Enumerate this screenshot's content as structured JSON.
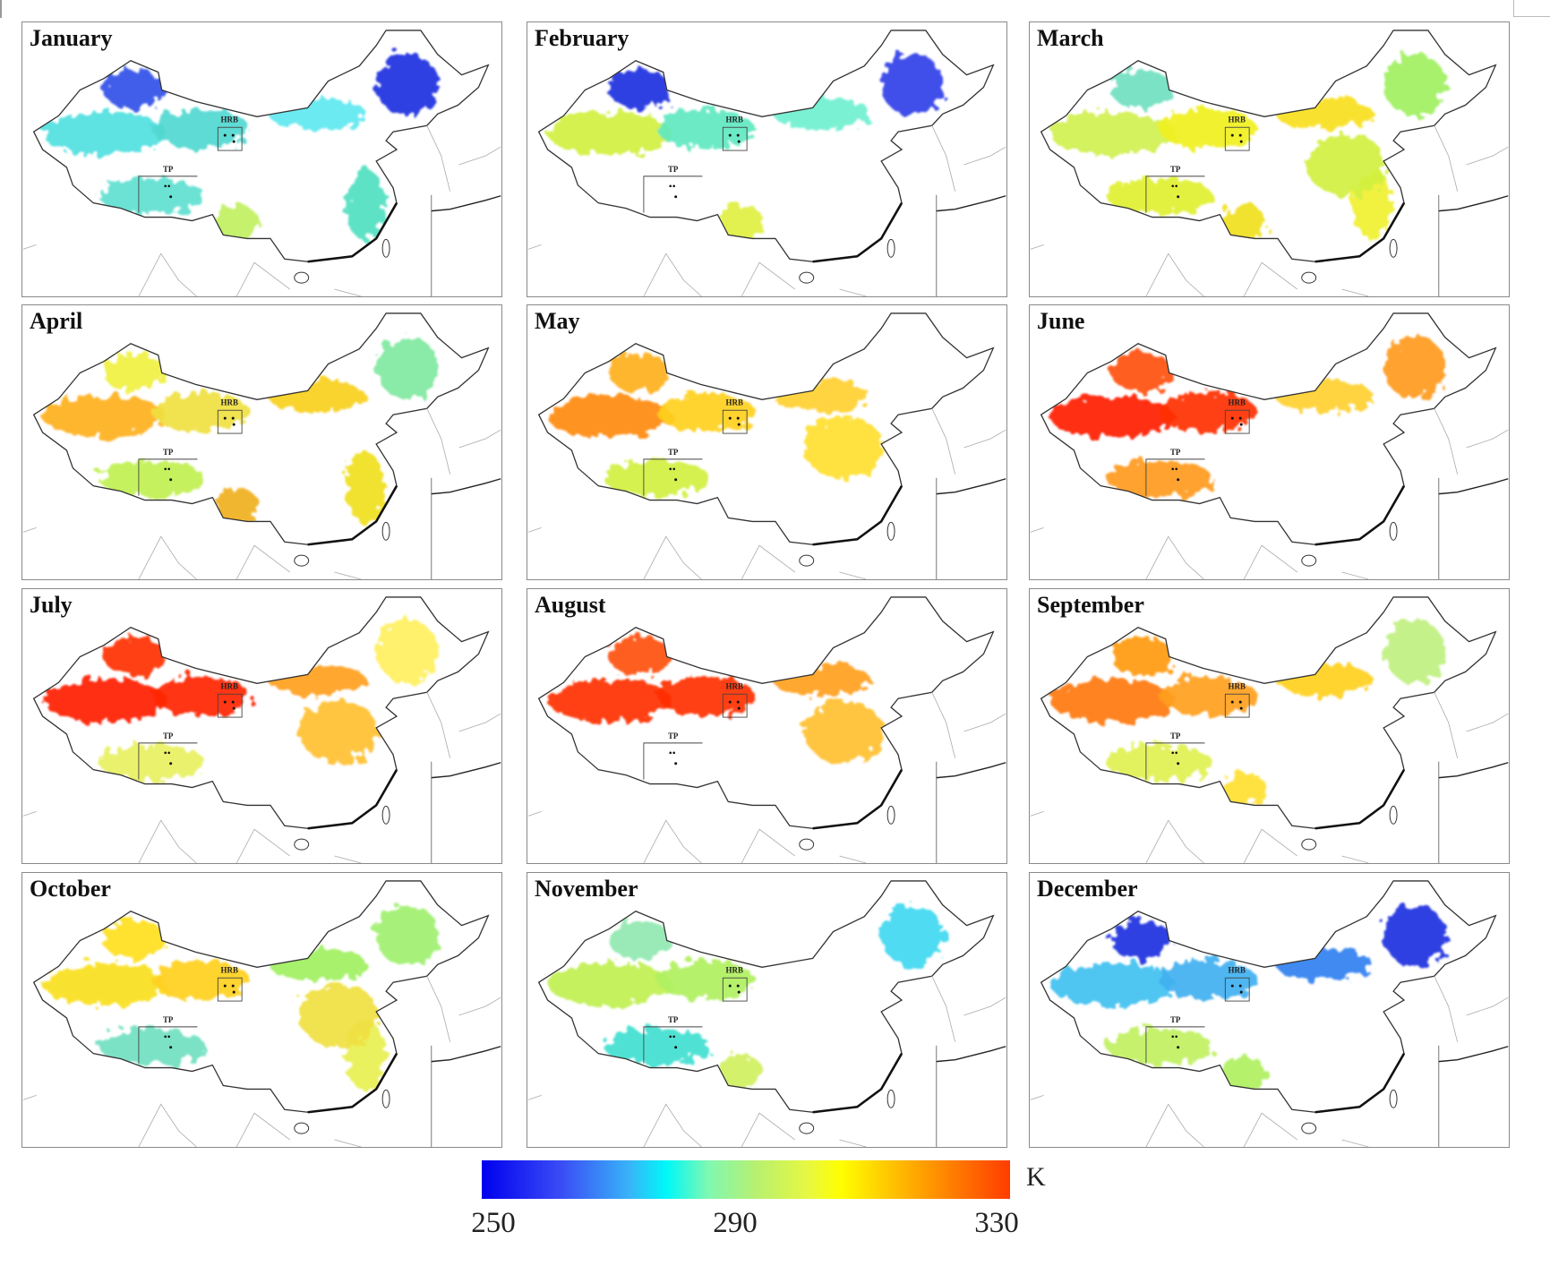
{
  "figure": {
    "annotations": {
      "hrb": "HRB",
      "tp": "TP"
    },
    "panels": [
      {
        "title": "January",
        "colors": {
          "A": "#3050e8",
          "B": "#50e0e0",
          "C": "#50d8d0",
          "D": "#60e8f0",
          "E": "#2030e0",
          "F": "#60e0d0",
          "G": "#c0f060",
          "H": "#50e0c0",
          "I": null
        }
      },
      {
        "title": "February",
        "colors": {
          "A": "#2030e0",
          "B": "#d0f040",
          "C": "#60e8c0",
          "D": "#70f0d0",
          "E": "#3040e8",
          "F": null,
          "G": "#e0f040",
          "H": null,
          "I": null
        }
      },
      {
        "title": "March",
        "colors": {
          "A": "#70e0c0",
          "B": "#d0f050",
          "C": "#f0f020",
          "D": "#f8e020",
          "E": "#a0f060",
          "F": "#e0f030",
          "G": "#f0e020",
          "H": "#f0f030",
          "I": "#d0f040"
        }
      },
      {
        "title": "April",
        "colors": {
          "A": "#f0f040",
          "B": "#ffb020",
          "C": "#f0e040",
          "D": "#f8d020",
          "E": "#80e8a0",
          "F": "#c0f050",
          "G": "#f0b020",
          "H": "#f0e020",
          "I": null
        }
      },
      {
        "title": "May",
        "colors": {
          "A": "#ffb020",
          "B": "#ff8a10",
          "C": "#ffd020",
          "D": "#ffd030",
          "E": null,
          "F": "#d0f040",
          "G": null,
          "H": null,
          "I": "#ffe030"
        }
      },
      {
        "title": "June",
        "colors": {
          "A": "#ff5010",
          "B": "#ff2000",
          "C": "#ff3000",
          "D": "#ffd030",
          "E": "#ff9a20",
          "F": "#ff9a20",
          "G": null,
          "H": null,
          "I": null
        }
      },
      {
        "title": "July",
        "colors": {
          "A": "#ff3000",
          "B": "#ff2000",
          "C": "#ff2500",
          "D": "#ffa020",
          "E": "#fff060",
          "F": "#e8f060",
          "G": null,
          "H": null,
          "I": "#ffc030"
        }
      },
      {
        "title": "August",
        "colors": {
          "A": "#ff5010",
          "B": "#ff3000",
          "C": "#ff3000",
          "D": "#ffa020",
          "E": null,
          "F": null,
          "G": null,
          "H": null,
          "I": "#ffc030"
        }
      },
      {
        "title": "September",
        "colors": {
          "A": "#ff9a10",
          "B": "#ff7a10",
          "C": "#ffa020",
          "D": "#ffd020",
          "E": "#c0f080",
          "F": "#e0f050",
          "G": "#ffe030",
          "H": null,
          "I": null
        }
      },
      {
        "title": "October",
        "colors": {
          "A": "#ffe020",
          "B": "#f8e020",
          "C": "#ffd020",
          "D": "#a0f060",
          "E": "#a0f070",
          "F": "#70e0c0",
          "G": null,
          "H": "#e8f050",
          "I": "#f0e040"
        }
      },
      {
        "title": "November",
        "colors": {
          "A": "#90e8b0",
          "B": "#c0f050",
          "C": "#b0f060",
          "D": null,
          "E": "#40d8f0",
          "F": "#40e0d0",
          "G": "#d0f060",
          "H": null,
          "I": null
        }
      },
      {
        "title": "December",
        "colors": {
          "A": "#2030e0",
          "B": "#40c0f0",
          "C": "#40b0f0",
          "D": "#3080f0",
          "E": "#2030e0",
          "F": "#c0f060",
          "G": "#b0f060",
          "H": null,
          "I": null
        }
      }
    ]
  },
  "colorbar": {
    "min": 250,
    "max": 330,
    "ticks": [
      "250",
      "290",
      "330"
    ],
    "unit": "K",
    "stops": [
      "#0000ee",
      "#38b4f8",
      "#00f8f8",
      "#b8f070",
      "#ffff00",
      "#ffb400",
      "#ff3c00"
    ]
  }
}
